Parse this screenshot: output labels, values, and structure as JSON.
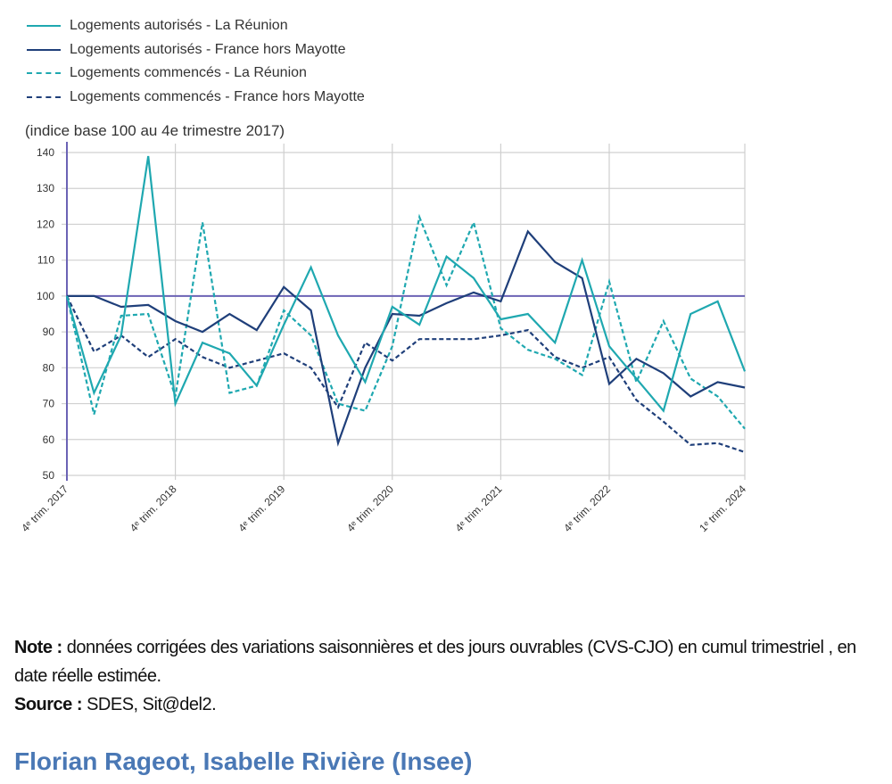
{
  "chart_data": {
    "type": "line",
    "title": "",
    "ylabel": "(indice base 100 au 4e trimestre 2017)",
    "xlabel": "",
    "ylim": [
      50,
      140
    ],
    "yticks": [
      140,
      130,
      120,
      110,
      100,
      90,
      80,
      70,
      60,
      50
    ],
    "grid": true,
    "legend_position": "top-left",
    "reference_line": 100,
    "x_count": 26,
    "x_tick_labels": [
      {
        "index": 0,
        "label": "4ᵉ trim. 2017"
      },
      {
        "index": 4,
        "label": "4ᵉ trim. 2018"
      },
      {
        "index": 8,
        "label": "4ᵉ trim. 2019"
      },
      {
        "index": 12,
        "label": "4ᵉ trim. 2020"
      },
      {
        "index": 16,
        "label": "4ᵉ trim. 2021"
      },
      {
        "index": 20,
        "label": "4ᵉ trim. 2022"
      },
      {
        "index": 25,
        "label": "1ᵉ trim. 2024"
      }
    ],
    "series": [
      {
        "name": "Logements autorisés - La Réunion",
        "color": "#1fa8b0",
        "dash": false,
        "values": [
          100,
          73,
          89,
          139,
          70,
          87,
          84,
          75,
          92,
          108,
          89,
          76,
          97,
          92,
          111,
          105,
          93.5,
          95,
          87,
          110,
          86,
          77,
          68,
          95,
          98.5,
          79
        ]
      },
      {
        "name": "Logements autorisés - France hors Mayotte",
        "color": "#1f3f7a",
        "dash": false,
        "values": [
          100,
          100,
          97,
          97.5,
          93,
          90,
          95,
          90.5,
          102.5,
          96,
          59,
          80,
          95,
          94.5,
          98,
          101,
          98.5,
          118,
          109.5,
          105,
          75.5,
          82.5,
          78.5,
          72,
          76,
          74.5
        ]
      },
      {
        "name": "Logements commencés - La Réunion",
        "color": "#1fa8b0",
        "dash": true,
        "values": [
          100,
          67,
          94.5,
          95,
          72,
          120.5,
          73,
          75,
          96,
          89,
          70,
          68,
          86,
          122,
          103,
          120.5,
          91,
          85,
          82.5,
          78,
          104,
          76,
          93,
          77,
          72,
          63
        ]
      },
      {
        "name": "Logements commencés - France hors Mayotte",
        "color": "#1f3f7a",
        "dash": true,
        "values": [
          100,
          84.5,
          89,
          83,
          88,
          83,
          80,
          82,
          84,
          80,
          69,
          87,
          82,
          88,
          88,
          88,
          89,
          90.5,
          83,
          80,
          83,
          71,
          65,
          58.5,
          59,
          56.5
        ]
      }
    ]
  },
  "notes": {
    "note_label": "Note :",
    "note_text": " données corrigées des variations saisonnières et des jours ouvrables (CVS-CJO) en cumul trimestriel , en date réelle estimée.",
    "source_label": "Source :",
    "source_text": " SDES, Sit@del2."
  },
  "author": "Florian Rageot, Isabelle Rivière (Insee)"
}
